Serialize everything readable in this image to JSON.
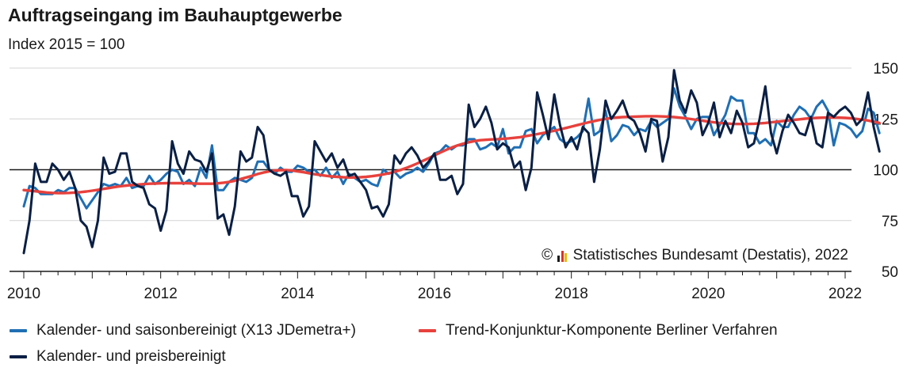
{
  "chart_data": {
    "type": "line",
    "title": "Auftragseingang im Bauhauptgewerbe",
    "subtitle": "Index 2015 = 100",
    "xlabel": "",
    "ylabel": "",
    "x_start": "2010-01",
    "xlim": [
      2010,
      2022
    ],
    "ylim": [
      50,
      150
    ],
    "x_ticks": [
      2010,
      2012,
      2014,
      2016,
      2018,
      2020,
      2022
    ],
    "x_tick_labels": [
      "2010",
      "2012",
      "2014",
      "2016",
      "2018",
      "2020",
      "2022"
    ],
    "y_ticks": [
      50,
      75,
      100,
      125,
      150
    ],
    "y_tick_labels": [
      "50",
      "75",
      "100",
      "125",
      "150"
    ],
    "reference_line": 100,
    "grid": true,
    "legend_position": "bottom",
    "source": "Statistisches Bundesamt (Destatis), 2022",
    "copyright_symbol": "©",
    "series": [
      {
        "name": "Kalender- und saisonbereinigt (X13 JDemetra+)",
        "color": "#1f6fb4",
        "values": [
          82,
          92,
          91,
          88,
          88,
          88,
          90,
          89,
          91,
          91,
          86,
          81,
          85,
          89,
          93,
          92,
          93,
          92,
          96,
          91,
          92,
          92,
          97,
          93,
          95,
          98,
          100,
          99,
          93,
          95,
          92,
          101,
          96,
          112,
          90,
          90,
          94,
          96,
          95,
          94,
          96,
          104,
          104,
          100,
          98,
          101,
          99,
          99,
          102,
          101,
          99,
          100,
          97,
          101,
          96,
          99,
          93,
          98,
          96,
          94,
          95,
          93,
          92,
          100,
          98,
          99,
          96,
          98,
          99,
          101,
          99,
          103,
          108,
          109,
          112,
          110,
          112,
          112,
          115,
          115,
          110,
          111,
          113,
          111,
          120,
          108,
          111,
          111,
          119,
          120,
          113,
          117,
          119,
          121,
          115,
          113,
          114,
          116,
          119,
          135,
          117,
          119,
          129,
          114,
          117,
          122,
          121,
          117,
          120,
          119,
          124,
          121,
          123,
          125,
          140,
          131,
          126,
          120,
          125,
          126,
          126,
          117,
          122,
          127,
          136,
          134,
          134,
          118,
          118,
          113,
          115,
          112,
          124,
          121,
          121,
          127,
          131,
          129,
          125,
          131,
          134,
          129,
          112,
          123,
          122,
          120,
          116,
          119,
          130,
          128,
          118
        ]
      },
      {
        "name": "Kalender- und preisbereinigt",
        "color": "#0a1f44",
        "values": [
          59,
          75,
          103,
          94,
          94,
          103,
          100,
          95,
          99,
          91,
          75,
          72,
          62,
          75,
          106,
          98,
          99,
          108,
          108,
          94,
          92,
          91,
          83,
          81,
          70,
          80,
          114,
          103,
          98,
          109,
          105,
          104,
          99,
          108,
          76,
          78,
          68,
          82,
          109,
          104,
          106,
          121,
          117,
          100,
          98,
          97,
          99,
          87,
          87,
          77,
          82,
          114,
          109,
          104,
          108,
          101,
          105,
          97,
          98,
          94,
          90,
          81,
          82,
          77,
          83,
          107,
          103,
          108,
          111,
          107,
          101,
          104,
          108,
          95,
          95,
          97,
          88,
          93,
          132,
          121,
          125,
          131,
          123,
          110,
          113,
          111,
          101,
          104,
          90,
          101,
          138,
          127,
          115,
          137,
          122,
          111,
          116,
          110,
          121,
          118,
          94,
          110,
          134,
          125,
          129,
          134,
          126,
          124,
          118,
          109,
          125,
          124,
          104,
          116,
          149,
          134,
          128,
          139,
          133,
          117,
          123,
          133,
          116,
          124,
          118,
          129,
          123,
          111,
          113,
          125,
          141,
          118,
          108,
          119,
          127,
          123,
          118,
          117,
          126,
          113,
          111,
          128,
          126,
          129,
          131,
          128,
          122,
          125,
          138,
          121,
          109
        ]
      },
      {
        "name": "Trend-Konjunktur-Komponente Berliner Verfahren",
        "color": "#e8413c",
        "values": [
          90.0,
          89.7,
          89.4,
          89.1,
          88.8,
          88.6,
          88.5,
          88.5,
          88.6,
          88.8,
          89.0,
          89.3,
          89.7,
          90.1,
          90.6,
          91.0,
          91.5,
          91.9,
          92.2,
          92.5,
          92.7,
          92.9,
          93.1,
          93.2,
          93.3,
          93.4,
          93.4,
          93.4,
          93.4,
          93.3,
          93.2,
          93.1,
          93.1,
          93.1,
          93.3,
          93.6,
          94.0,
          94.6,
          95.4,
          96.2,
          97.0,
          97.9,
          98.6,
          99.2,
          99.6,
          99.8,
          99.8,
          99.6,
          99.2,
          98.8,
          98.3,
          97.8,
          97.4,
          97.0,
          96.7,
          96.5,
          96.3,
          96.2,
          96.2,
          96.3,
          96.5,
          96.8,
          97.2,
          97.7,
          98.3,
          99.0,
          99.8,
          100.8,
          101.9,
          103.1,
          104.4,
          105.7,
          107.1,
          108.4,
          109.7,
          110.9,
          111.9,
          112.8,
          113.5,
          114.1,
          114.5,
          114.7,
          114.9,
          115.0,
          115.2,
          115.4,
          115.7,
          116.0,
          116.5,
          117.0,
          117.5,
          118.0,
          118.6,
          119.2,
          119.8,
          120.5,
          121.2,
          121.9,
          122.6,
          123.3,
          123.9,
          124.5,
          125.0,
          125.4,
          125.7,
          125.9,
          126.0,
          126.1,
          126.2,
          126.3,
          126.3,
          126.3,
          126.2,
          126.1,
          125.9,
          125.6,
          125.3,
          124.9,
          124.5,
          124.1,
          123.7,
          123.3,
          123.0,
          122.8,
          122.6,
          122.5,
          122.5,
          122.5,
          122.6,
          122.8,
          123.0,
          123.3,
          123.6,
          123.9,
          124.2,
          124.5,
          124.8,
          125.1,
          125.3,
          125.5,
          125.6,
          125.7,
          125.7,
          125.6,
          125.5,
          125.3,
          125.0,
          124.6,
          124.2,
          123.6,
          123.0
        ]
      }
    ]
  }
}
